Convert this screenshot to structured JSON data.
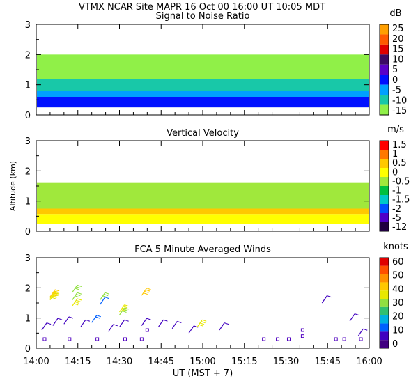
{
  "header": {
    "title": "VTMX   NCAR Site   MAPR 16 Oct 00   16:00 UT   10:05   MDT"
  },
  "chart_data": [
    {
      "type": "heatmap",
      "title": "Signal to Noise Ratio",
      "xlim": [
        "14:00",
        "16:00"
      ],
      "ylim": [
        0,
        3
      ],
      "y_ticks": [
        0,
        1,
        2,
        3
      ],
      "x_ticks": [
        "14:00",
        "14:15",
        "14:30",
        "14:45",
        "15:00",
        "15:15",
        "15:30",
        "15:45",
        "16:00"
      ],
      "colorbar": {
        "unit": "dB",
        "labels": [
          "25",
          "20",
          "15",
          "10",
          "5",
          "0",
          "-5",
          "-10",
          "-15"
        ],
        "colors": [
          "#ff9f00",
          "#ff5a00",
          "#e00000",
          "#3c0a64",
          "#5a00c8",
          "#0010ff",
          "#00a0ff",
          "#18c8a8",
          "#90f048"
        ]
      },
      "bands": [
        {
          "from_km": 0.25,
          "to_km": 0.6,
          "color": "#0010ff"
        },
        {
          "from_km": 0.6,
          "to_km": 0.8,
          "color": "#00a0ff"
        },
        {
          "from_km": 0.8,
          "to_km": 1.2,
          "color": "#18c8a8"
        },
        {
          "from_km": 1.2,
          "to_km": 2.0,
          "color": "#90f048"
        }
      ]
    },
    {
      "type": "heatmap",
      "title": "Vertical Velocity",
      "ylabel": "Altitude (km)",
      "xlim": [
        "14:00",
        "16:00"
      ],
      "ylim": [
        0,
        3
      ],
      "y_ticks": [
        0,
        1,
        2,
        3
      ],
      "x_ticks": [
        "14:00",
        "14:15",
        "14:30",
        "14:45",
        "15:00",
        "15:15",
        "15:30",
        "15:45",
        "16:00"
      ],
      "colorbar": {
        "unit": "m/s",
        "labels": [
          "1.5",
          "1",
          "0.5",
          "0",
          "-0.5",
          "-1",
          "-1.5",
          "-2",
          "-5",
          "-12"
        ],
        "colors": [
          "#ff0000",
          "#ff7800",
          "#ffc800",
          "#ffff00",
          "#a0e83c",
          "#00c040",
          "#00c8c8",
          "#0050ff",
          "#5000c8",
          "#200040"
        ]
      },
      "bands": [
        {
          "from_km": 0.25,
          "to_km": 0.55,
          "color": "#ffff00"
        },
        {
          "from_km": 0.55,
          "to_km": 0.75,
          "color": "#ffc800"
        },
        {
          "from_km": 0.75,
          "to_km": 1.6,
          "color": "#a0e83c"
        }
      ]
    },
    {
      "type": "scatter",
      "title": "FCA 5 Minute Averaged Winds",
      "xlabel": "UT  (MST + 7)",
      "xlim": [
        "14:00",
        "16:00"
      ],
      "ylim": [
        0,
        3
      ],
      "y_ticks": [
        0,
        1,
        2,
        3
      ],
      "x_ticks": [
        "14:00",
        "14:15",
        "14:30",
        "14:45",
        "15:00",
        "15:15",
        "15:30",
        "15:45",
        "16:00"
      ],
      "colorbar": {
        "unit": "knots",
        "labels": [
          "60",
          "50",
          "40",
          "30",
          "20",
          "10",
          "0"
        ],
        "colors": [
          "#e00000",
          "#ff5000",
          "#ff9000",
          "#ffc800",
          "#e8e800",
          "#90e040",
          "#30c070",
          "#00b0e0",
          "#0060ff",
          "#4000c0",
          "#400080"
        ]
      },
      "winds": [
        {
          "t": "14:05",
          "km": 1.6,
          "kt": 35
        },
        {
          "t": "14:05",
          "km": 1.65,
          "kt": 35
        },
        {
          "t": "14:05",
          "km": 1.7,
          "kt": 40
        },
        {
          "t": "14:13",
          "km": 1.4,
          "kt": 35
        },
        {
          "t": "14:13",
          "km": 1.6,
          "kt": 30
        },
        {
          "t": "14:13",
          "km": 1.85,
          "kt": 30
        },
        {
          "t": "14:23",
          "km": 1.45,
          "kt": 10
        },
        {
          "t": "14:23",
          "km": 1.6,
          "kt": 30
        },
        {
          "t": "14:30",
          "km": 1.1,
          "kt": 30
        },
        {
          "t": "14:30",
          "km": 1.2,
          "kt": 35
        },
        {
          "t": "14:38",
          "km": 1.75,
          "kt": 40
        },
        {
          "t": "14:02",
          "km": 0.6,
          "kt": 5
        },
        {
          "t": "14:06",
          "km": 0.75,
          "kt": 5
        },
        {
          "t": "14:10",
          "km": 0.8,
          "kt": 5
        },
        {
          "t": "14:16",
          "km": 0.7,
          "kt": 5
        },
        {
          "t": "14:20",
          "km": 0.85,
          "kt": 15
        },
        {
          "t": "14:26",
          "km": 0.55,
          "kt": 5
        },
        {
          "t": "14:30",
          "km": 0.7,
          "kt": 5
        },
        {
          "t": "14:38",
          "km": 0.75,
          "kt": 5
        },
        {
          "t": "14:44",
          "km": 0.7,
          "kt": 5
        },
        {
          "t": "14:49",
          "km": 0.65,
          "kt": 5
        },
        {
          "t": "14:55",
          "km": 0.5,
          "kt": 5
        },
        {
          "t": "14:58",
          "km": 0.7,
          "kt": 35
        },
        {
          "t": "15:06",
          "km": 0.6,
          "kt": 5
        },
        {
          "t": "15:43",
          "km": 1.5,
          "kt": 5
        },
        {
          "t": "15:53",
          "km": 0.9,
          "kt": 5
        },
        {
          "t": "15:56",
          "km": 0.4,
          "kt": 5
        }
      ],
      "calm": [
        {
          "t": "14:03",
          "km": 0.3
        },
        {
          "t": "14:12",
          "km": 0.3
        },
        {
          "t": "14:22",
          "km": 0.3
        },
        {
          "t": "14:32",
          "km": 0.3
        },
        {
          "t": "14:38",
          "km": 0.3
        },
        {
          "t": "14:40",
          "km": 0.6
        },
        {
          "t": "15:22",
          "km": 0.3
        },
        {
          "t": "15:27",
          "km": 0.3
        },
        {
          "t": "15:31",
          "km": 0.3
        },
        {
          "t": "15:36",
          "km": 0.6
        },
        {
          "t": "15:36",
          "km": 0.4
        },
        {
          "t": "15:48",
          "km": 0.3
        },
        {
          "t": "15:51",
          "km": 0.3
        },
        {
          "t": "15:57",
          "km": 0.3
        }
      ]
    }
  ]
}
